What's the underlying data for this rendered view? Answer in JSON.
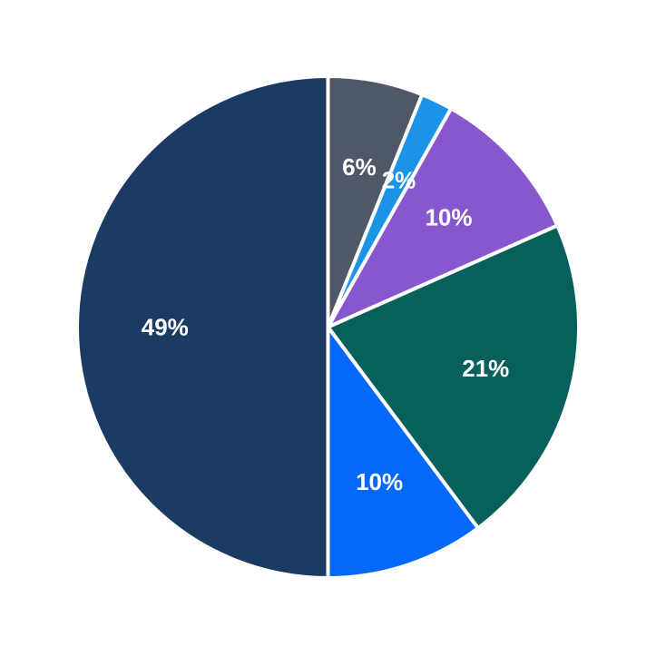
{
  "chart_data": {
    "type": "pie",
    "title": "",
    "legend": "none",
    "direction": "clockwise",
    "start_angle_deg": 0,
    "pct_distance": 0.65,
    "edge_color": "#ffffff",
    "background_color": "#ffffff",
    "label_color": "#ffffff",
    "slices": [
      {
        "name": "slate-gray",
        "label": "6%",
        "value": 6,
        "color": "#4e5866"
      },
      {
        "name": "azure",
        "label": "2%",
        "value": 2,
        "color": "#1b94e8"
      },
      {
        "name": "purple",
        "label": "10%",
        "value": 10,
        "color": "#8757cd"
      },
      {
        "name": "teal",
        "label": "21%",
        "value": 21,
        "color": "#07605b"
      },
      {
        "name": "bright-blue",
        "label": "10%",
        "value": 10,
        "color": "#0568fb"
      },
      {
        "name": "navy",
        "label": "49%",
        "value": 49,
        "color": "#1c3b63"
      }
    ]
  }
}
